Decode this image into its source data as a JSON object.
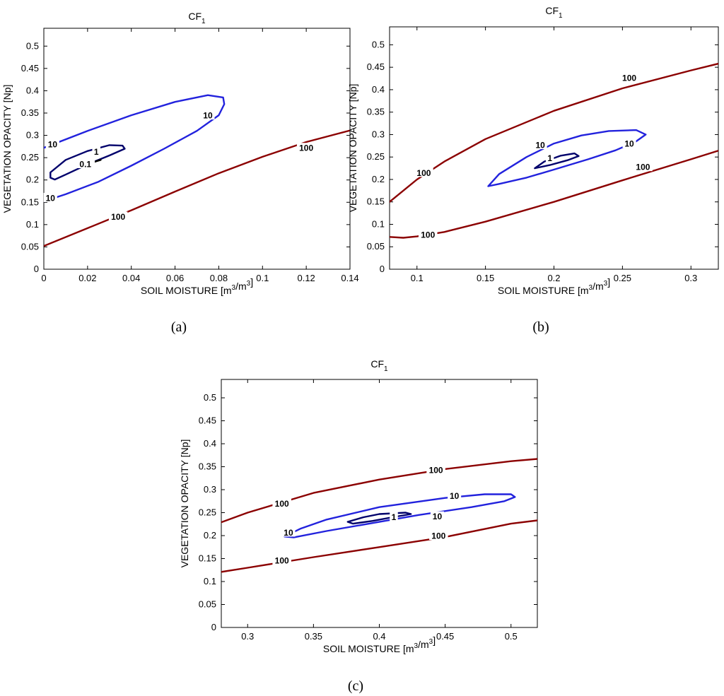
{
  "colors": {
    "level_100": "#8b0000",
    "level_10": "#2222dd",
    "level_1": "#00006b"
  },
  "chart_data": [
    {
      "type": "contour",
      "caption": "(a)",
      "title": "CF",
      "title_sub": "1",
      "xlabel": "SOIL MOISTURE [m3/m3]",
      "ylabel": "VEGETATION OPACITY [Np]",
      "xlim": [
        0,
        0.14
      ],
      "ylim": [
        0,
        0.54
      ],
      "xticks": [
        0,
        0.02,
        0.04,
        0.06,
        0.08,
        0.1,
        0.12,
        0.14
      ],
      "yticks": [
        0,
        0.05,
        0.1,
        0.15,
        0.2,
        0.25,
        0.3,
        0.35,
        0.4,
        0.45,
        0.5
      ],
      "grid": false,
      "contours": [
        {
          "level": "100",
          "closed": false,
          "points": [
            [
              0,
              0.052
            ],
            [
              0.02,
              0.092
            ],
            [
              0.04,
              0.132
            ],
            [
              0.06,
              0.174
            ],
            [
              0.08,
              0.215
            ],
            [
              0.1,
              0.252
            ],
            [
              0.12,
              0.285
            ],
            [
              0.14,
              0.311
            ]
          ],
          "labels": [
            {
              "text": "100",
              "x": 0.034,
              "y": 0.118
            },
            {
              "text": "100",
              "x": 0.12,
              "y": 0.272
            }
          ]
        },
        {
          "level": "10",
          "closed": false,
          "points": [
            [
              0,
              0.272
            ],
            [
              0.02,
              0.31
            ],
            [
              0.04,
              0.345
            ],
            [
              0.06,
              0.375
            ],
            [
              0.075,
              0.39
            ],
            [
              0.082,
              0.385
            ],
            [
              0.0825,
              0.37
            ],
            [
              0.08,
              0.345
            ],
            [
              0.07,
              0.31
            ],
            [
              0.055,
              0.27
            ],
            [
              0.04,
              0.232
            ],
            [
              0.025,
              0.196
            ],
            [
              0.01,
              0.168
            ],
            [
              0,
              0.152
            ]
          ],
          "labels": [
            {
              "text": "10",
              "x": 0.004,
              "y": 0.28
            },
            {
              "text": "10",
              "x": 0.075,
              "y": 0.345
            },
            {
              "text": "10",
              "x": 0.003,
              "y": 0.16
            }
          ]
        },
        {
          "level": "1",
          "closed": true,
          "points": [
            [
              0.003,
              0.217
            ],
            [
              0.01,
              0.245
            ],
            [
              0.02,
              0.265
            ],
            [
              0.03,
              0.278
            ],
            [
              0.036,
              0.277
            ],
            [
              0.037,
              0.27
            ],
            [
              0.03,
              0.255
            ],
            [
              0.02,
              0.235
            ],
            [
              0.01,
              0.212
            ],
            [
              0.005,
              0.201
            ],
            [
              0.003,
              0.205
            ]
          ],
          "labels": [
            {
              "text": "1",
              "x": 0.024,
              "y": 0.264
            }
          ]
        },
        {
          "level": "0.1",
          "closed": false,
          "points": [
            [
              0.016,
              0.232
            ],
            [
              0.022,
              0.239
            ],
            [
              0.026,
              0.245
            ]
          ],
          "labels": [
            {
              "text": "0.1",
              "x": 0.019,
              "y": 0.236
            }
          ]
        }
      ]
    },
    {
      "type": "contour",
      "caption": "(b)",
      "title": "CF",
      "title_sub": "1",
      "xlabel": "SOIL MOISTURE [m3/m3]",
      "ylabel": "VEGETATION OPACITY [Np]",
      "xlim": [
        0.08,
        0.32
      ],
      "ylim": [
        0,
        0.54
      ],
      "xticks": [
        0.1,
        0.15,
        0.2,
        0.25,
        0.3
      ],
      "yticks": [
        0,
        0.05,
        0.1,
        0.15,
        0.2,
        0.25,
        0.3,
        0.35,
        0.4,
        0.45,
        0.5
      ],
      "grid": false,
      "contours": [
        {
          "level": "100",
          "closed": false,
          "points": [
            [
              0.08,
              0.15
            ],
            [
              0.1,
              0.2
            ],
            [
              0.12,
              0.24
            ],
            [
              0.15,
              0.29
            ],
            [
              0.2,
              0.353
            ],
            [
              0.25,
              0.403
            ],
            [
              0.3,
              0.443
            ],
            [
              0.32,
              0.458
            ]
          ],
          "labels": [
            {
              "text": "100",
              "x": 0.105,
              "y": 0.215
            },
            {
              "text": "100",
              "x": 0.255,
              "y": 0.427
            }
          ]
        },
        {
          "level": "100",
          "closed": false,
          "points": [
            [
              0.08,
              0.072
            ],
            [
              0.09,
              0.07
            ],
            [
              0.1,
              0.073
            ],
            [
              0.12,
              0.083
            ],
            [
              0.15,
              0.106
            ],
            [
              0.2,
              0.15
            ],
            [
              0.25,
              0.198
            ],
            [
              0.3,
              0.245
            ],
            [
              0.32,
              0.264
            ]
          ],
          "labels": [
            {
              "text": "100",
              "x": 0.108,
              "y": 0.077
            },
            {
              "text": "100",
              "x": 0.265,
              "y": 0.228
            }
          ]
        },
        {
          "level": "10",
          "closed": true,
          "points": [
            [
              0.152,
              0.185
            ],
            [
              0.16,
              0.212
            ],
            [
              0.18,
              0.25
            ],
            [
              0.2,
              0.28
            ],
            [
              0.22,
              0.298
            ],
            [
              0.24,
              0.308
            ],
            [
              0.26,
              0.31
            ],
            [
              0.267,
              0.3
            ],
            [
              0.26,
              0.285
            ],
            [
              0.245,
              0.265
            ],
            [
              0.225,
              0.245
            ],
            [
              0.2,
              0.222
            ],
            [
              0.18,
              0.204
            ],
            [
              0.16,
              0.19
            ],
            [
              0.152,
              0.185
            ]
          ],
          "labels": [
            {
              "text": "10",
              "x": 0.19,
              "y": 0.277
            },
            {
              "text": "10",
              "x": 0.255,
              "y": 0.28
            }
          ]
        },
        {
          "level": "1",
          "closed": true,
          "points": [
            [
              0.186,
              0.225
            ],
            [
              0.193,
              0.24
            ],
            [
              0.205,
              0.253
            ],
            [
              0.215,
              0.258
            ],
            [
              0.218,
              0.252
            ],
            [
              0.21,
              0.243
            ],
            [
              0.197,
              0.232
            ],
            [
              0.186,
              0.225
            ]
          ],
          "labels": [
            {
              "text": "1",
              "x": 0.197,
              "y": 0.248
            }
          ]
        }
      ]
    },
    {
      "type": "contour",
      "caption": "(c)",
      "title": "CF",
      "title_sub": "1",
      "xlabel": "SOIL MOISTURE [m3/m3]",
      "ylabel": "VEGETATION OPACITY [Np]",
      "xlim": [
        0.28,
        0.52
      ],
      "ylim": [
        0,
        0.54
      ],
      "xticks": [
        0.3,
        0.35,
        0.4,
        0.45,
        0.5
      ],
      "yticks": [
        0,
        0.05,
        0.1,
        0.15,
        0.2,
        0.25,
        0.3,
        0.35,
        0.4,
        0.45,
        0.5
      ],
      "grid": false,
      "contours": [
        {
          "level": "100",
          "closed": false,
          "points": [
            [
              0.28,
              0.229
            ],
            [
              0.3,
              0.25
            ],
            [
              0.35,
              0.293
            ],
            [
              0.4,
              0.322
            ],
            [
              0.45,
              0.345
            ],
            [
              0.5,
              0.362
            ],
            [
              0.52,
              0.367
            ]
          ],
          "labels": [
            {
              "text": "100",
              "x": 0.326,
              "y": 0.27
            },
            {
              "text": "100",
              "x": 0.443,
              "y": 0.343
            }
          ]
        },
        {
          "level": "100",
          "closed": false,
          "points": [
            [
              0.28,
              0.121
            ],
            [
              0.3,
              0.13
            ],
            [
              0.35,
              0.153
            ],
            [
              0.4,
              0.175
            ],
            [
              0.45,
              0.197
            ],
            [
              0.5,
              0.226
            ],
            [
              0.52,
              0.233
            ]
          ],
          "labels": [
            {
              "text": "100",
              "x": 0.326,
              "y": 0.146
            },
            {
              "text": "100",
              "x": 0.445,
              "y": 0.2
            }
          ]
        },
        {
          "level": "10",
          "closed": true,
          "points": [
            [
              0.328,
              0.198
            ],
            [
              0.34,
              0.215
            ],
            [
              0.36,
              0.235
            ],
            [
              0.4,
              0.262
            ],
            [
              0.45,
              0.282
            ],
            [
              0.48,
              0.29
            ],
            [
              0.5,
              0.29
            ],
            [
              0.503,
              0.284
            ],
            [
              0.495,
              0.275
            ],
            [
              0.47,
              0.262
            ],
            [
              0.43,
              0.245
            ],
            [
              0.39,
              0.225
            ],
            [
              0.36,
              0.21
            ],
            [
              0.335,
              0.196
            ],
            [
              0.328,
              0.198
            ]
          ],
          "labels": [
            {
              "text": "10",
              "x": 0.331,
              "y": 0.207
            },
            {
              "text": "10",
              "x": 0.457,
              "y": 0.287
            },
            {
              "text": "10",
              "x": 0.444,
              "y": 0.242
            }
          ]
        },
        {
          "level": "1",
          "closed": true,
          "points": [
            [
              0.376,
              0.23
            ],
            [
              0.388,
              0.24
            ],
            [
              0.4,
              0.247
            ],
            [
              0.42,
              0.25
            ],
            [
              0.424,
              0.247
            ],
            [
              0.41,
              0.24
            ],
            [
              0.395,
              0.232
            ],
            [
              0.38,
              0.226
            ],
            [
              0.376,
              0.23
            ]
          ],
          "labels": [
            {
              "text": "1",
              "x": 0.411,
              "y": 0.241
            }
          ]
        }
      ]
    }
  ]
}
